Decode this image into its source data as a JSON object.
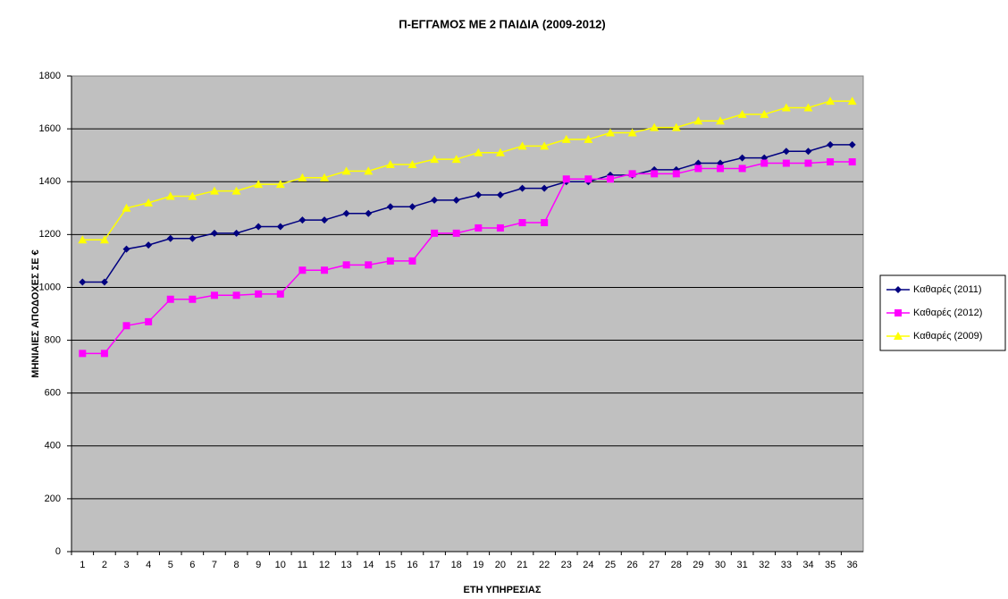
{
  "chart_data": {
    "type": "line",
    "title": "Π-ΕΓΓΑΜΟΣ ΜΕ 2 ΠΑΙΔΙΑ (2009-2012)",
    "x_label": "ΕΤΗ ΥΠΗΡΕΣΙΑΣ",
    "y_label": "ΜΗΝΙΑΙΕΣ ΑΠΟΔΟΧΕΣ ΣΕ €",
    "categories": [
      1,
      2,
      3,
      4,
      5,
      6,
      7,
      8,
      9,
      10,
      11,
      12,
      13,
      14,
      15,
      16,
      17,
      18,
      19,
      20,
      21,
      22,
      23,
      24,
      25,
      26,
      27,
      28,
      29,
      30,
      31,
      32,
      33,
      34,
      35,
      36
    ],
    "series": [
      {
        "name": "Καθαρές (2011)",
        "color": "#000080",
        "marker": "diamond",
        "values": [
          1020,
          1020,
          1145,
          1160,
          1185,
          1185,
          1205,
          1205,
          1230,
          1230,
          1255,
          1255,
          1280,
          1280,
          1305,
          1305,
          1330,
          1330,
          1350,
          1350,
          1375,
          1375,
          1400,
          1400,
          1425,
          1425,
          1445,
          1445,
          1470,
          1470,
          1490,
          1490,
          1515,
          1515,
          1540,
          1540
        ]
      },
      {
        "name": "Καθαρές (2012)",
        "color": "#ff00ff",
        "marker": "square",
        "values": [
          750,
          750,
          855,
          870,
          955,
          955,
          970,
          970,
          975,
          975,
          1065,
          1065,
          1085,
          1085,
          1100,
          1100,
          1205,
          1205,
          1225,
          1225,
          1245,
          1245,
          1410,
          1410,
          1410,
          1430,
          1430,
          1430,
          1450,
          1450,
          1450,
          1470,
          1470,
          1470,
          1475,
          1475
        ]
      },
      {
        "name": "Καθαρές (2009)",
        "color": "#ffff00",
        "marker": "triangle",
        "values": [
          1180,
          1180,
          1300,
          1320,
          1345,
          1345,
          1365,
          1365,
          1390,
          1390,
          1415,
          1415,
          1440,
          1440,
          1465,
          1465,
          1485,
          1485,
          1510,
          1510,
          1535,
          1535,
          1560,
          1560,
          1585,
          1585,
          1605,
          1605,
          1630,
          1630,
          1655,
          1655,
          1680,
          1680,
          1705,
          1705
        ]
      }
    ],
    "ylim": [
      0,
      1800
    ],
    "yticks": [
      0,
      200,
      400,
      600,
      800,
      1000,
      1200,
      1400,
      1600,
      1800
    ],
    "grid": true,
    "legend": "right"
  }
}
